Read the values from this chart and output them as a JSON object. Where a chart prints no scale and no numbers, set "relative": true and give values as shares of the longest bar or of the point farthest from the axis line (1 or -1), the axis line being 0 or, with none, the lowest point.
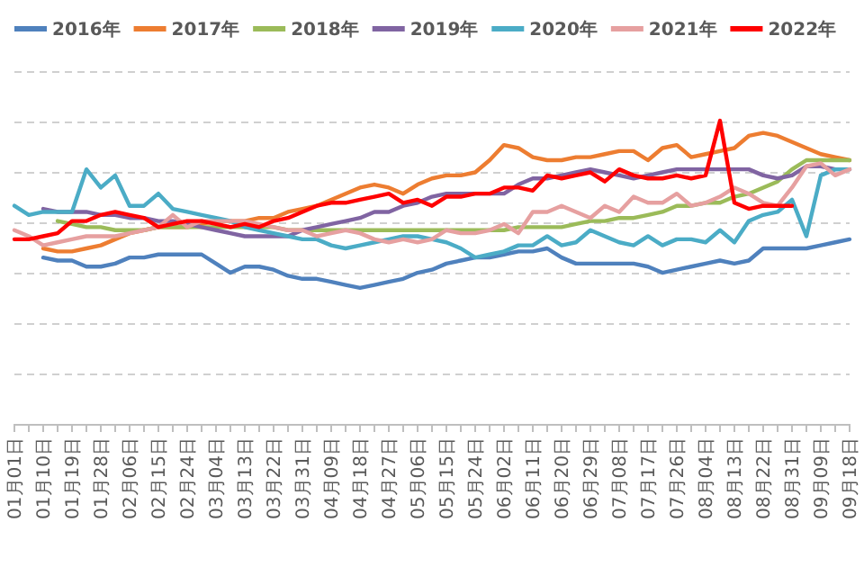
{
  "chart_data": {
    "type": "line",
    "relative": true,
    "grid": "y",
    "legend": "top",
    "categories": [
      "01月01日",
      null,
      "01月10日",
      null,
      "01月19日",
      null,
      "01月28日",
      null,
      "02月06日",
      null,
      "02月15日",
      null,
      "02月24日",
      null,
      "03月04日",
      null,
      "03月13日",
      null,
      "03月22日",
      null,
      "03月31日",
      null,
      "04月09日",
      null,
      "04月18日",
      null,
      "04月27日",
      null,
      "05月06日",
      null,
      "05月15日",
      null,
      "05月24日",
      null,
      "06月02日",
      null,
      "06月11日",
      null,
      "06月20日",
      null,
      "06月29日",
      null,
      "07月08日",
      null,
      "07月17日",
      null,
      "07月26日",
      null,
      "08月04日",
      null,
      "08月13日",
      null,
      "08月22日",
      null,
      "08月31日",
      null,
      "09月09日",
      null,
      "09月18日"
    ],
    "series": [
      {
        "name": "2016年",
        "color": "#4f81bd",
        "values": [
          null,
          null,
          0.55,
          0.54,
          0.54,
          0.52,
          0.52,
          0.53,
          0.55,
          0.55,
          0.56,
          0.56,
          0.56,
          0.56,
          0.53,
          0.5,
          0.52,
          0.52,
          0.51,
          0.49,
          0.48,
          0.48,
          0.47,
          0.46,
          0.45,
          0.46,
          0.47,
          0.48,
          0.5,
          0.51,
          0.53,
          0.54,
          0.55,
          0.55,
          0.56,
          0.57,
          0.57,
          0.58,
          0.55,
          0.53,
          0.53,
          0.53,
          0.53,
          0.53,
          0.52,
          0.5,
          0.51,
          0.52,
          0.53,
          0.54,
          0.53,
          0.54,
          0.58,
          0.58,
          0.58,
          0.58,
          0.59,
          0.6,
          0.61
        ]
      },
      {
        "name": "2017年",
        "color": "#ed7d31",
        "values": [
          null,
          null,
          0.58,
          0.57,
          0.57,
          0.58,
          0.59,
          0.61,
          0.63,
          0.64,
          0.65,
          0.65,
          0.65,
          0.66,
          0.67,
          0.67,
          0.67,
          0.68,
          0.68,
          0.7,
          0.71,
          0.72,
          0.74,
          0.76,
          0.78,
          0.79,
          0.78,
          0.76,
          0.79,
          0.81,
          0.82,
          0.82,
          0.83,
          0.87,
          0.92,
          0.91,
          0.88,
          0.87,
          0.87,
          0.88,
          0.88,
          0.89,
          0.9,
          0.9,
          0.87,
          0.91,
          0.92,
          0.88,
          0.89,
          0.9,
          0.91,
          0.95,
          0.96,
          0.95,
          0.93,
          0.91,
          0.89,
          0.88,
          0.87
        ]
      },
      {
        "name": "2018年",
        "color": "#9bbb59",
        "values": [
          null,
          null,
          null,
          0.67,
          0.66,
          0.65,
          0.65,
          0.64,
          0.64,
          0.64,
          0.65,
          0.65,
          0.65,
          0.65,
          0.65,
          0.65,
          0.65,
          0.65,
          0.65,
          0.64,
          0.64,
          0.64,
          0.64,
          0.64,
          0.64,
          0.64,
          0.64,
          0.64,
          0.64,
          0.64,
          0.64,
          0.64,
          0.64,
          0.64,
          0.64,
          0.65,
          0.65,
          0.65,
          0.65,
          0.66,
          0.67,
          0.67,
          0.68,
          0.68,
          0.69,
          0.7,
          0.72,
          0.72,
          0.73,
          0.73,
          0.75,
          0.76,
          0.78,
          0.8,
          0.84,
          0.87,
          0.87,
          0.87,
          0.87
        ]
      },
      {
        "name": "2019年",
        "color": "#8064a2",
        "values": [
          null,
          null,
          0.71,
          0.7,
          0.7,
          0.7,
          0.69,
          0.69,
          0.68,
          0.68,
          0.67,
          0.67,
          0.66,
          0.65,
          0.64,
          0.63,
          0.62,
          0.62,
          0.62,
          0.62,
          0.64,
          0.65,
          0.66,
          0.67,
          0.68,
          0.7,
          0.7,
          0.72,
          0.73,
          0.75,
          0.76,
          0.76,
          0.76,
          0.76,
          0.76,
          0.79,
          0.81,
          0.81,
          0.82,
          0.83,
          0.84,
          0.83,
          0.82,
          0.81,
          0.82,
          0.83,
          0.84,
          0.84,
          0.84,
          0.84,
          0.84,
          0.84,
          0.82,
          0.81,
          0.82,
          0.85,
          0.85,
          0.84,
          0.84
        ]
      },
      {
        "name": "2020年",
        "color": "#4bacc6",
        "values": [
          0.72,
          0.69,
          0.7,
          0.7,
          0.7,
          0.84,
          0.78,
          0.82,
          0.72,
          0.72,
          0.76,
          0.71,
          0.7,
          0.69,
          0.68,
          0.67,
          0.65,
          0.64,
          0.63,
          0.62,
          0.61,
          0.61,
          0.59,
          0.58,
          0.59,
          0.6,
          0.61,
          0.62,
          0.62,
          0.61,
          0.6,
          0.58,
          0.55,
          0.56,
          0.57,
          0.59,
          0.59,
          0.62,
          0.59,
          0.6,
          0.64,
          0.62,
          0.6,
          0.59,
          0.62,
          0.59,
          0.61,
          0.61,
          0.6,
          0.64,
          0.6,
          0.67,
          0.69,
          0.7,
          0.74,
          0.62,
          0.82,
          0.84,
          0.84
        ]
      },
      {
        "name": "2021年",
        "color": "#e6a0a0",
        "values": [
          0.64,
          0.62,
          0.59,
          0.6,
          0.61,
          0.62,
          0.62,
          0.62,
          0.63,
          0.64,
          0.65,
          0.69,
          0.65,
          0.67,
          0.67,
          0.67,
          0.67,
          0.66,
          0.65,
          0.64,
          0.64,
          0.62,
          0.63,
          0.64,
          0.63,
          0.61,
          0.6,
          0.61,
          0.6,
          0.61,
          0.64,
          0.63,
          0.63,
          0.64,
          0.66,
          0.63,
          0.7,
          0.7,
          0.72,
          0.7,
          0.68,
          0.72,
          0.7,
          0.75,
          0.73,
          0.73,
          0.76,
          0.72,
          0.73,
          0.75,
          0.78,
          0.76,
          0.73,
          0.72,
          0.78,
          0.85,
          0.86,
          0.82,
          0.84
        ]
      },
      {
        "name": "2022年",
        "color": "#ff0000",
        "values": [
          0.61,
          0.61,
          0.62,
          0.63,
          0.67,
          0.67,
          0.69,
          0.7,
          0.69,
          0.68,
          0.65,
          0.66,
          0.67,
          0.67,
          0.66,
          0.65,
          0.66,
          0.65,
          0.67,
          0.68,
          0.7,
          0.72,
          0.73,
          0.73,
          0.74,
          0.75,
          0.76,
          0.73,
          0.74,
          0.72,
          0.75,
          0.75,
          0.76,
          0.76,
          0.78,
          0.78,
          0.77,
          0.82,
          0.81,
          0.82,
          0.83,
          0.8,
          0.84,
          0.82,
          0.81,
          0.81,
          0.82,
          0.81,
          0.82,
          1.0,
          0.73,
          0.71,
          0.72,
          0.72,
          0.72,
          null,
          null,
          null,
          null
        ]
      }
    ]
  }
}
